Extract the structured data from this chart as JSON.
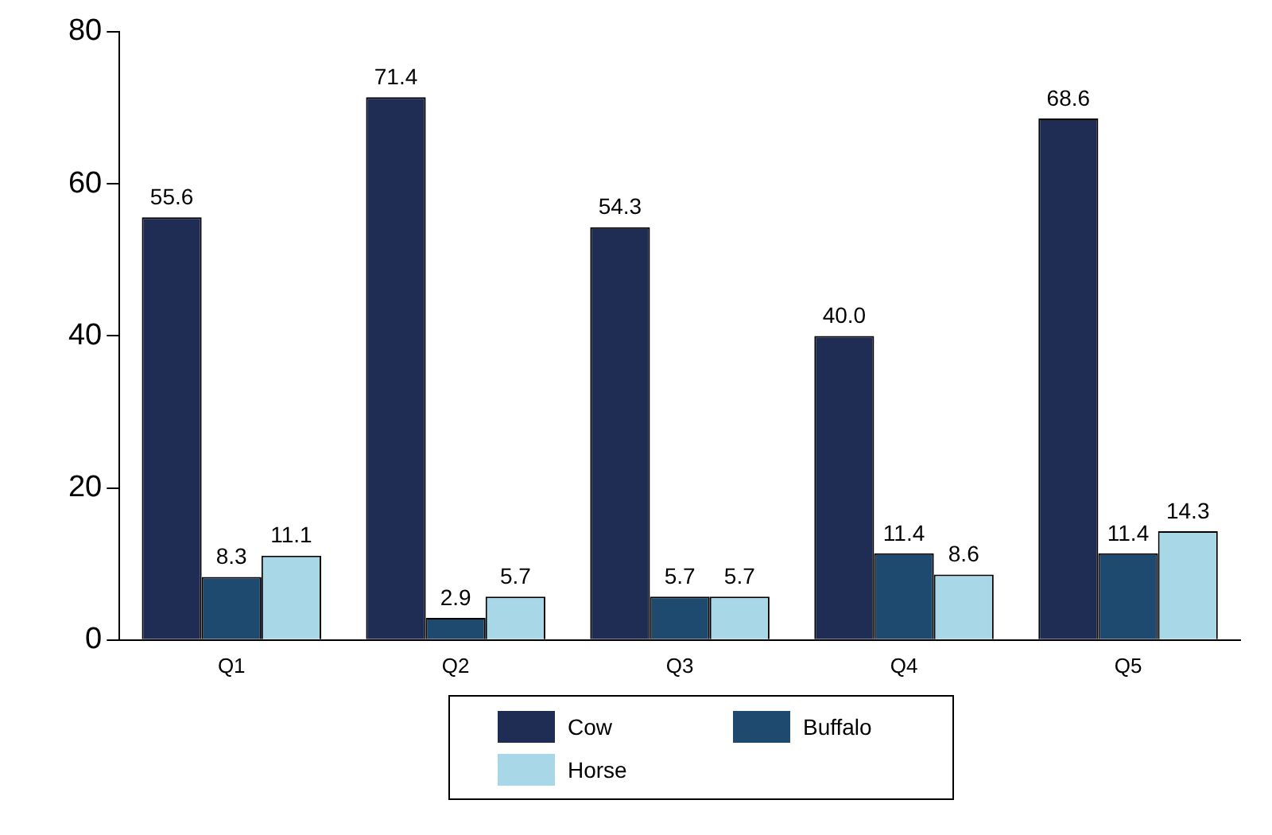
{
  "chart_data": {
    "type": "bar",
    "categories": [
      "Q1",
      "Q2",
      "Q3",
      "Q4",
      "Q5"
    ],
    "series": [
      {
        "name": "Cow",
        "color": "#1f2d55",
        "values": [
          55.6,
          71.4,
          54.3,
          40.0,
          68.6
        ],
        "value_labels": [
          "55.6",
          "71.4",
          "54.3",
          "40.0",
          "68.6"
        ]
      },
      {
        "name": "Buffalo",
        "color": "#1d4a6e",
        "values": [
          8.3,
          2.9,
          5.7,
          11.4,
          11.4
        ],
        "value_labels": [
          "8.3",
          "2.9",
          "5.7",
          "11.4",
          "11.4"
        ]
      },
      {
        "name": "Horse",
        "color": "#a8d8e8",
        "values": [
          11.1,
          5.7,
          5.7,
          8.6,
          14.3
        ],
        "value_labels": [
          "11.1",
          "5.7",
          "5.7",
          "8.6",
          "14.3"
        ]
      }
    ],
    "ylim": [
      0,
      80
    ],
    "yticks": [
      0,
      20,
      40,
      60,
      80
    ],
    "grid": false,
    "legend": "bottom"
  }
}
